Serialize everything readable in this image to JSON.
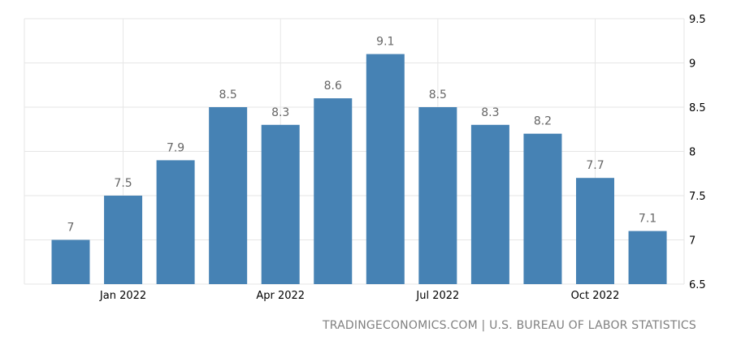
{
  "chart_data": {
    "type": "bar",
    "categories": [
      "Dec 2021",
      "Jan 2022",
      "Feb 2022",
      "Mar 2022",
      "Apr 2022",
      "May 2022",
      "Jun 2022",
      "Jul 2022",
      "Aug 2022",
      "Sep 2022",
      "Oct 2022",
      "Nov 2022"
    ],
    "values": [
      7.0,
      7.5,
      7.9,
      8.5,
      8.3,
      8.6,
      9.1,
      8.5,
      8.3,
      8.2,
      7.7,
      7.1
    ],
    "value_labels": [
      "7",
      "7.5",
      "7.9",
      "8.5",
      "8.3",
      "8.6",
      "9.1",
      "8.5",
      "8.3",
      "8.2",
      "7.7",
      "7.1"
    ],
    "x_tick_labels": [
      {
        "category": "Jan 2022",
        "label": "Jan 2022"
      },
      {
        "category": "Apr 2022",
        "label": "Apr 2022"
      },
      {
        "category": "Jul 2022",
        "label": "Jul 2022"
      },
      {
        "category": "Oct 2022",
        "label": "Oct 2022"
      }
    ],
    "y_ticks": [
      6.5,
      7,
      7.5,
      8,
      8.5,
      9,
      9.5
    ],
    "y_tick_labels": [
      "6.5",
      "7",
      "7.5",
      "8",
      "8.5",
      "9",
      "9.5"
    ],
    "ylim": [
      6.5,
      9.5
    ],
    "y_axis_side": "right",
    "grid": true,
    "bar_color": "#4682b4",
    "grid_color": "#e6e6e6",
    "label_color": "#666666"
  },
  "source": "TRADINGECONOMICS.COM | U.S. BUREAU OF LABOR STATISTICS"
}
